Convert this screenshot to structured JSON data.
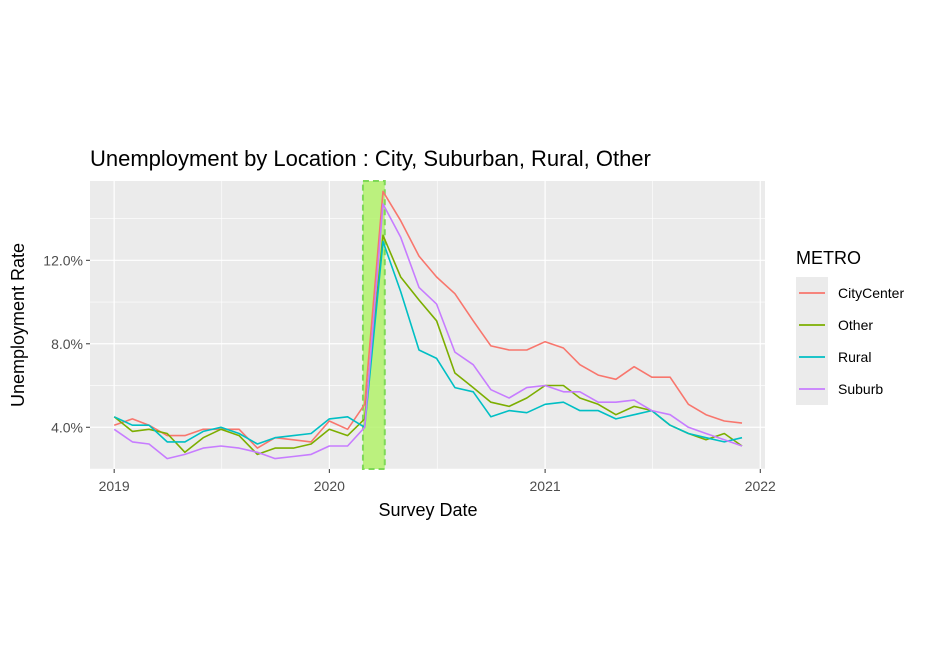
{
  "chart_data": {
    "type": "line",
    "title": "Unemployment by Location : City, Suburban, Rural, Other",
    "xlabel": "Survey Date",
    "ylabel": "Unemployment Rate",
    "x_ticks": [
      "2019",
      "2020",
      "2021",
      "2022"
    ],
    "y_ticks": [
      "4.0%",
      "8.0%",
      "12.0%"
    ],
    "y_tick_values": [
      4.0,
      8.0,
      12.0
    ],
    "xlim": [
      "2018-11-21",
      "2022-01-09"
    ],
    "ylim": [
      2.0,
      15.8
    ],
    "grid": true,
    "legend_position": "right",
    "legend_title": "METRO",
    "highlight": {
      "start": "2020-03-01",
      "end": "2020-04-01",
      "color": "#b3f26b",
      "border": "#7ed957"
    },
    "dates": [
      "2019-01",
      "2019-02",
      "2019-03",
      "2019-04",
      "2019-05",
      "2019-06",
      "2019-07",
      "2019-08",
      "2019-09",
      "2019-10",
      "2019-11",
      "2019-12",
      "2020-01",
      "2020-02",
      "2020-03",
      "2020-04",
      "2020-05",
      "2020-06",
      "2020-07",
      "2020-08",
      "2020-09",
      "2020-10",
      "2020-11",
      "2020-12",
      "2021-01",
      "2021-02",
      "2021-03",
      "2021-04",
      "2021-05",
      "2021-06",
      "2021-07",
      "2021-08",
      "2021-09",
      "2021-10",
      "2021-11",
      "2021-12"
    ],
    "series": [
      {
        "name": "CityCenter",
        "color": "#F8766D",
        "values": [
          4.1,
          4.4,
          4.1,
          3.6,
          3.6,
          3.9,
          3.9,
          3.9,
          3.0,
          3.5,
          3.4,
          3.3,
          4.3,
          3.9,
          5.1,
          15.3,
          13.9,
          12.2,
          11.2,
          10.4,
          9.1,
          7.9,
          7.7,
          7.7,
          8.1,
          7.8,
          7.0,
          6.5,
          6.3,
          6.9,
          6.4,
          6.4,
          5.1,
          4.6,
          4.3,
          4.2
        ]
      },
      {
        "name": "Other",
        "color": "#7CAE00",
        "values": [
          4.5,
          3.8,
          3.9,
          3.7,
          2.8,
          3.5,
          3.9,
          3.6,
          2.7,
          3.0,
          3.0,
          3.2,
          3.9,
          3.6,
          4.4,
          13.2,
          11.2,
          10.1,
          9.1,
          6.6,
          5.9,
          5.2,
          5.0,
          5.4,
          6.0,
          6.0,
          5.4,
          5.1,
          4.6,
          5.0,
          4.8,
          4.1,
          3.7,
          3.4,
          3.7,
          3.1
        ]
      },
      {
        "name": "Rural",
        "color": "#00BFC4",
        "values": [
          4.5,
          4.1,
          4.1,
          3.3,
          3.3,
          3.8,
          4.0,
          3.7,
          3.2,
          3.5,
          3.6,
          3.7,
          4.4,
          4.5,
          4.0,
          12.9,
          10.5,
          7.7,
          7.3,
          5.9,
          5.7,
          4.5,
          4.8,
          4.7,
          5.1,
          5.2,
          4.8,
          4.8,
          4.4,
          4.6,
          4.8,
          4.1,
          3.7,
          3.5,
          3.3,
          3.5
        ]
      },
      {
        "name": "Suburb",
        "color": "#C77CFF",
        "values": [
          3.9,
          3.3,
          3.2,
          2.5,
          2.7,
          3.0,
          3.1,
          3.0,
          2.8,
          2.5,
          2.6,
          2.7,
          3.1,
          3.1,
          4.0,
          14.7,
          13.1,
          10.7,
          9.9,
          7.6,
          7.0,
          5.8,
          5.4,
          5.9,
          6.0,
          5.7,
          5.7,
          5.2,
          5.2,
          5.3,
          4.8,
          4.6,
          4.0,
          3.7,
          3.4,
          3.1
        ]
      }
    ]
  }
}
